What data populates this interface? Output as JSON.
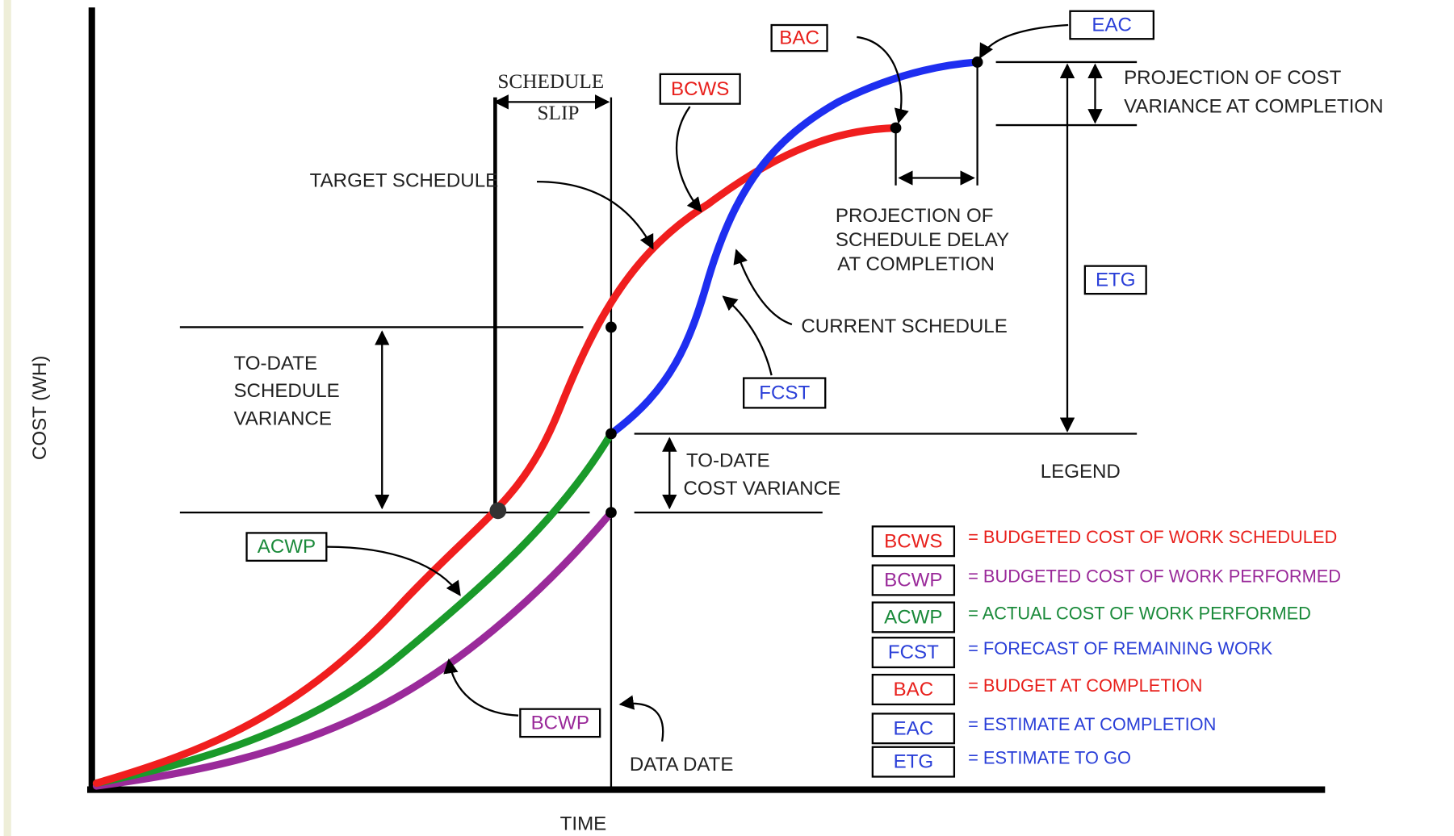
{
  "axes": {
    "y_label": "COST (WH)",
    "x_label": "TIME"
  },
  "annotations": {
    "schedule_slip": [
      "SCHEDULE",
      "SLIP"
    ],
    "target_schedule": "TARGET SCHEDULE",
    "current_schedule": "CURRENT SCHEDULE",
    "to_date_schedule_variance": [
      "TO-DATE",
      "SCHEDULE",
      "VARIANCE"
    ],
    "to_date_cost_variance": [
      "TO-DATE",
      "COST VARIANCE"
    ],
    "projection_cost_variance": [
      "PROJECTION OF COST",
      "VARIANCE AT COMPLETION"
    ],
    "projection_schedule_delay": [
      "PROJECTION OF",
      "SCHEDULE DELAY",
      "AT COMPLETION"
    ],
    "data_date": "DATA DATE"
  },
  "boxes": [
    {
      "label": "BAC",
      "color": "#e8201c"
    },
    {
      "label": "EAC",
      "color": "#2a3fd8"
    },
    {
      "label": "BCWS",
      "color": "#e8201c"
    },
    {
      "label": "ETG",
      "color": "#2a3fd8"
    },
    {
      "label": "FCST",
      "color": "#2a3fd8"
    },
    {
      "label": "ACWP",
      "color": "#1a8a3a"
    },
    {
      "label": "BCWP",
      "color": "#9a2a9a"
    }
  ],
  "legend": {
    "title": "LEGEND",
    "items": [
      {
        "code": "BCWS",
        "meaning": "= BUDGETED COST OF WORK SCHEDULED",
        "color": "#e8201c"
      },
      {
        "code": "BCWP",
        "meaning": "= BUDGETED COST OF WORK PERFORMED",
        "color": "#9a2a9a"
      },
      {
        "code": "ACWP",
        "meaning": "= ACTUAL COST OF WORK PERFORMED",
        "color": "#1a8a3a"
      },
      {
        "code": "FCST",
        "meaning": "= FORECAST OF REMAINING WORK",
        "color": "#2a3fd8"
      },
      {
        "code": "BAC",
        "meaning": "= BUDGET AT COMPLETION",
        "color": "#e8201c"
      },
      {
        "code": "EAC",
        "meaning": "= ESTIMATE AT COMPLETION",
        "color": "#2a3fd8"
      },
      {
        "code": "ETG",
        "meaning": "= ESTIMATE TO GO",
        "color": "#2a3fd8"
      }
    ]
  }
}
